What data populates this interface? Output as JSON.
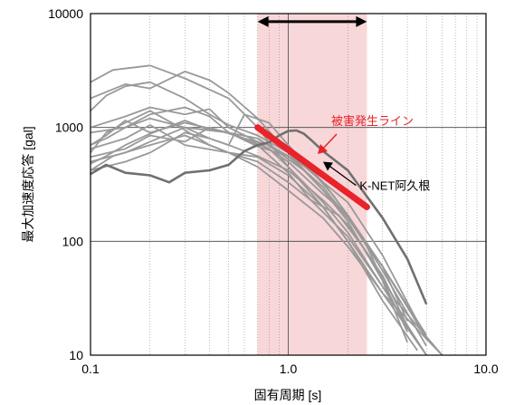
{
  "chart_data": {
    "type": "line",
    "xlabel": "固有周期 [s]",
    "ylabel": "最大加速度応答 [gal]",
    "x_scale": "log",
    "y_scale": "log",
    "xlim": [
      0.1,
      10
    ],
    "ylim": [
      10,
      10000
    ],
    "x_ticks": [
      "0.1",
      "1.0",
      "10.0"
    ],
    "y_ticks": [
      "10",
      "100",
      "1000",
      "10000"
    ],
    "grid": true,
    "shaded_range": {
      "x": [
        0.7,
        2.5
      ],
      "color": "#f8d7d9"
    },
    "range_arrow": {
      "x": [
        0.7,
        2.5
      ],
      "y": 8500
    },
    "damage_line": {
      "label": "被害発生ライン",
      "color": "#e8232a",
      "x": [
        0.7,
        2.5
      ],
      "y": [
        1000,
        200
      ]
    },
    "annotation": {
      "label": "K-NET阿久根",
      "tip": {
        "x": 1.5,
        "y": 500
      },
      "from": {
        "x": 2.2,
        "y": 310
      }
    },
    "colors": {
      "spectra": "#999999",
      "highlight": "#707070",
      "axis": "#000000",
      "grid": "#000000"
    },
    "highlight_series": {
      "name": "K-NET阿久根",
      "x": [
        0.1,
        0.12,
        0.15,
        0.2,
        0.25,
        0.3,
        0.4,
        0.5,
        0.6,
        0.7,
        0.8,
        0.9,
        1.0,
        1.1,
        1.2,
        1.3,
        1.5,
        2.0,
        3.0,
        4.0,
        5.0
      ],
      "y": [
        390,
        470,
        400,
        380,
        330,
        400,
        420,
        470,
        620,
        700,
        740,
        850,
        930,
        940,
        880,
        780,
        620,
        420,
        160,
        70,
        28
      ]
    },
    "series": [
      {
        "x": [
          0.1,
          0.13,
          0.2,
          0.3,
          0.5,
          0.7,
          1.0,
          1.5,
          2.0,
          3.0,
          5.0
        ],
        "y": [
          2500,
          3200,
          3500,
          2700,
          1800,
          1000,
          450,
          200,
          100,
          35,
          10
        ]
      },
      {
        "x": [
          0.1,
          0.15,
          0.2,
          0.3,
          0.4,
          0.5,
          0.7,
          1.0,
          1.5,
          2.0,
          3.0,
          4.0
        ],
        "y": [
          1800,
          2400,
          2200,
          3100,
          2600,
          2000,
          1200,
          600,
          280,
          150,
          45,
          13
        ]
      },
      {
        "x": [
          0.1,
          0.12,
          0.15,
          0.2,
          0.3,
          0.4,
          0.5,
          0.7,
          1.0,
          1.5,
          2.0,
          3.0,
          5.0
        ],
        "y": [
          1400,
          1900,
          2300,
          2500,
          1800,
          1300,
          1050,
          850,
          600,
          330,
          220,
          75,
          14
        ]
      },
      {
        "x": [
          0.1,
          0.15,
          0.2,
          0.3,
          0.4,
          0.5,
          0.7,
          1.0,
          1.5,
          2.0,
          3.0,
          5.0
        ],
        "y": [
          1000,
          1250,
          1500,
          1300,
          1450,
          1000,
          750,
          500,
          260,
          170,
          55,
          12
        ]
      },
      {
        "x": [
          0.1,
          0.12,
          0.15,
          0.2,
          0.3,
          0.5,
          0.7,
          1.0,
          1.3,
          1.7,
          2.5,
          4.0
        ],
        "y": [
          700,
          850,
          1150,
          900,
          1100,
          900,
          680,
          560,
          420,
          250,
          90,
          16
        ]
      },
      {
        "x": [
          0.1,
          0.15,
          0.2,
          0.3,
          0.4,
          0.6,
          0.8,
          1.0,
          1.5,
          2.0,
          3.0,
          5.0
        ],
        "y": [
          550,
          650,
          850,
          750,
          1000,
          800,
          650,
          450,
          220,
          120,
          40,
          10
        ]
      },
      {
        "x": [
          0.1,
          0.12,
          0.15,
          0.2,
          0.3,
          0.4,
          0.5,
          0.7,
          1.0,
          1.5,
          2.0,
          3.0,
          4.5
        ],
        "y": [
          600,
          900,
          1100,
          1400,
          950,
          700,
          600,
          550,
          380,
          200,
          100,
          30,
          11
        ]
      },
      {
        "x": [
          0.1,
          0.15,
          0.2,
          0.3,
          0.5,
          0.7,
          1.0,
          1.3,
          1.8,
          2.5,
          3.5,
          6.0
        ],
        "y": [
          650,
          800,
          1050,
          700,
          600,
          500,
          330,
          230,
          170,
          80,
          30,
          10
        ]
      },
      {
        "x": [
          0.1,
          0.12,
          0.15,
          0.2,
          0.3,
          0.4,
          0.5,
          0.7,
          1.0,
          1.3,
          2.0,
          3.0,
          4.5
        ],
        "y": [
          480,
          560,
          700,
          880,
          1150,
          950,
          900,
          700,
          400,
          230,
          110,
          40,
          13
        ]
      },
      {
        "x": [
          0.1,
          0.15,
          0.2,
          0.3,
          0.4,
          0.5,
          0.6,
          0.8,
          1.0,
          1.5,
          2.0,
          3.0,
          5.0
        ],
        "y": [
          420,
          500,
          600,
          900,
          800,
          700,
          1300,
          1100,
          700,
          330,
          170,
          60,
          14
        ]
      },
      {
        "x": [
          0.1,
          0.13,
          0.2,
          0.3,
          0.5,
          0.7,
          1.0,
          1.5,
          2.0,
          3.0,
          6.0
        ],
        "y": [
          420,
          560,
          700,
          850,
          600,
          450,
          280,
          160,
          90,
          35,
          10
        ]
      },
      {
        "x": [
          0.1,
          0.15,
          0.2,
          0.3,
          0.4,
          0.5,
          0.7,
          1.0,
          1.5,
          2.0,
          3.0,
          4.0
        ],
        "y": [
          900,
          1000,
          1200,
          1000,
          800,
          700,
          560,
          420,
          230,
          140,
          50,
          18
        ]
      },
      {
        "x": [
          0.1,
          0.12,
          0.15,
          0.2,
          0.3,
          0.4,
          0.5,
          0.6,
          0.8,
          1.0,
          1.5,
          2.0,
          3.0,
          5.0
        ],
        "y": [
          700,
          800,
          1000,
          1300,
          1500,
          1250,
          900,
          800,
          700,
          560,
          300,
          160,
          60,
          15
        ]
      },
      {
        "x": [
          0.1,
          0.15,
          0.2,
          0.3,
          0.5,
          0.7,
          0.9,
          1.2,
          1.5,
          2.0,
          3.0,
          4.0
        ],
        "y": [
          500,
          600,
          750,
          1000,
          900,
          800,
          600,
          420,
          280,
          160,
          60,
          20
        ]
      }
    ]
  }
}
